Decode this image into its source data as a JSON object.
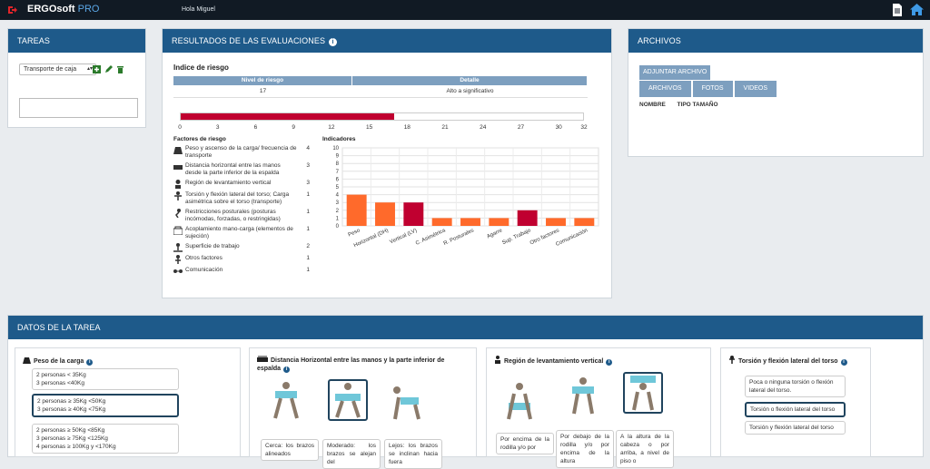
{
  "header": {
    "brand": "ERGOsoft",
    "brand_suffix": "PRO",
    "greeting": "Hola Miguel"
  },
  "tareas": {
    "title": "TAREAS",
    "selected": "Transporte de caja"
  },
  "resultados": {
    "title": "RESULTADOS DE LAS EVALUACIONES",
    "subtitle": "Indice de riesgo",
    "col_nivel": "Nivel de riesgo",
    "col_detalle": "Detalle",
    "nivel": "17",
    "detalle": "Alto a significativo",
    "risk_value": 17,
    "risk_max": 32,
    "ticks": [
      "0",
      "3",
      "6",
      "9",
      "12",
      "15",
      "18",
      "21",
      "24",
      "27",
      "30",
      "32"
    ],
    "factors_title": "Factores de riesgo",
    "indicators_title": "Indicadores",
    "factors": [
      {
        "label": "Peso y ascenso de la carga/ frecuencia de transporte",
        "value": "4",
        "icon": "weight-icon"
      },
      {
        "label": "Distancia horizontal entre las manos desde la parte inferior de la espalda",
        "value": "3",
        "icon": "distance-icon"
      },
      {
        "label": "Región de levantamiento vertical",
        "value": "3",
        "icon": "lift-icon"
      },
      {
        "label": "Torsión y flexión lateral del torso; Carga asimétrica sobre el torso (transporte)",
        "value": "1",
        "icon": "torsion-icon"
      },
      {
        "label": "Restricciones posturales (posturas incómodas, forzadas, o restringidas)",
        "value": "1",
        "icon": "posture-icon"
      },
      {
        "label": "Acoplamiento mano-carga (elementos de sujeción)",
        "value": "1",
        "icon": "grip-icon"
      },
      {
        "label": "Superficie de trabajo",
        "value": "2",
        "icon": "surface-icon"
      },
      {
        "label": "Otros factores",
        "value": "1",
        "icon": "other-icon"
      },
      {
        "label": "Comunicación",
        "value": "1",
        "icon": "communication-icon"
      }
    ]
  },
  "archivos": {
    "title": "ARCHIVOS",
    "upload": "ADJUNTAR ARCHIVO",
    "tabs": [
      "ARCHIVOS",
      "FOTOS",
      "VIDEOS"
    ],
    "col_nombre": "NOMBRE",
    "col_tipo": "TIPO TAMAÑO"
  },
  "chart_data": {
    "type": "bar",
    "categories": [
      "Peso",
      "Horizontal (DH)",
      "Vertical (LV)",
      "C. Asimétrica",
      "R. Posturales",
      "Agarre",
      "Sup. Trabajo",
      "Otro factores",
      "Comunicación"
    ],
    "values": [
      4,
      3,
      3,
      1,
      1,
      1,
      2,
      1,
      1
    ],
    "colors": [
      "#ff6a2b",
      "#ff6a2b",
      "#c00030",
      "#ff6a2b",
      "#ff6a2b",
      "#ff6a2b",
      "#c00030",
      "#ff6a2b",
      "#ff6a2b"
    ],
    "yticks": [
      "0",
      "1",
      "2",
      "3",
      "4",
      "5",
      "6",
      "7",
      "8",
      "9",
      "10"
    ],
    "ylim": [
      0,
      10
    ],
    "grid": true
  },
  "datos": {
    "title": "DATOS DE LA TAREA",
    "peso": {
      "title": "Peso de la carga",
      "opts": [
        [
          "2 personas < 35Kg",
          "3 personas <40Kg"
        ],
        [
          "2 personas ≥ 35Kg <50Kg",
          "3 personas ≥ 40Kg <75Kg"
        ],
        [
          "2 personas ≥ 50Kg <85Kg",
          "3 personas ≥ 75Kg <125Kg",
          "4 personas ≥ 100Kg y <170Kg"
        ]
      ]
    },
    "distancia": {
      "title": "Distancia Horizontal entre las manos y la parte inferior de espalda",
      "opts": [
        "Cerca: los brazos alineados",
        "Moderado: los brazos se alejan del",
        "Lejos: los brazos se inclinan hacia fuera"
      ]
    },
    "region": {
      "title": "Región de levantamiento vertical",
      "opts": [
        "Por encima de la rodilla y/o por",
        "Por debajo de la rodilla y/o por encima de la altura",
        "A la altura de la cabeza o por arriba, a nivel de piso o"
      ]
    },
    "torsion": {
      "title": "Torsión y flexión lateral del torso",
      "opts": [
        "Poca o ninguna torsión o flexión lateral del torso.",
        "Torsión o flexión lateral del torso",
        "Torsión y flexión lateral del torso"
      ]
    }
  }
}
